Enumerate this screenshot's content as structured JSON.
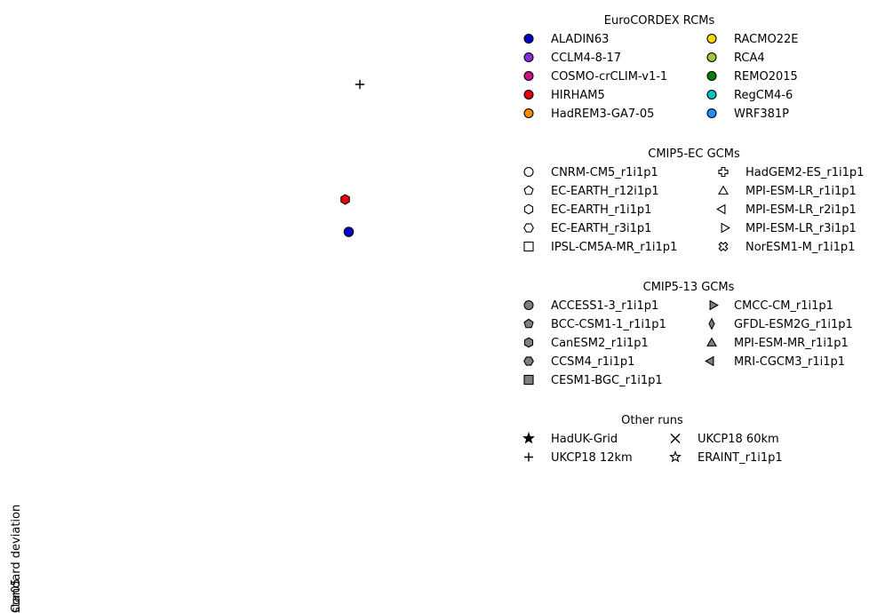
{
  "chart_data": {
    "type": "scatter",
    "title": "",
    "xlabel": "",
    "ylabel": "standard deviation",
    "ylabel_overlap": "Cor05",
    "grid": false,
    "points": [
      {
        "series": "UKCP18 12km",
        "marker": "plus",
        "color": "#000000"
      },
      {
        "series": "HIRHAM5",
        "marker": "hexagon",
        "color": "#e8000b"
      },
      {
        "series": "ALADIN63",
        "marker": "circle",
        "color": "#0000c8"
      }
    ],
    "legends": [
      {
        "title": "EuroCORDEX RCMs",
        "columns": 2,
        "entries": [
          {
            "label": "ALADIN63",
            "marker": "circle",
            "color": "#0000c8"
          },
          {
            "label": "CCLM4-8-17",
            "marker": "circle",
            "color": "#8a2be2"
          },
          {
            "label": "COSMO-crCLIM-v1-1",
            "marker": "circle",
            "color": "#c71585"
          },
          {
            "label": "HIRHAM5",
            "marker": "circle",
            "color": "#e8000b"
          },
          {
            "label": "HadREM3-GA7-05",
            "marker": "circle",
            "color": "#ff8c00"
          },
          {
            "label": "RACMO22E",
            "marker": "circle",
            "color": "#ffd700"
          },
          {
            "label": "RCA4",
            "marker": "circle",
            "color": "#9acd32"
          },
          {
            "label": "REMO2015",
            "marker": "circle",
            "color": "#008000"
          },
          {
            "label": "RegCM4-6",
            "marker": "circle",
            "color": "#00c0c8"
          },
          {
            "label": "WRF381P",
            "marker": "circle",
            "color": "#1e90ff"
          }
        ]
      },
      {
        "title": "CMIP5-EC GCMs",
        "columns": 2,
        "entries": [
          {
            "label": "CNRM-CM5_r1i1p1",
            "marker": "circle",
            "color": "#ffffff"
          },
          {
            "label": "EC-EARTH_r12i1p1",
            "marker": "pentagon",
            "color": "#ffffff"
          },
          {
            "label": "EC-EARTH_r1i1p1",
            "marker": "hexagon",
            "color": "#ffffff"
          },
          {
            "label": "EC-EARTH_r3i1p1",
            "marker": "hexagon2",
            "color": "#ffffff"
          },
          {
            "label": "IPSL-CM5A-MR_r1i1p1",
            "marker": "square",
            "color": "#ffffff"
          },
          {
            "label": "HadGEM2-ES_r1i1p1",
            "marker": "pluscross",
            "color": "#ffffff"
          },
          {
            "label": "MPI-ESM-LR_r1i1p1",
            "marker": "triangle-up",
            "color": "#ffffff"
          },
          {
            "label": "MPI-ESM-LR_r2i1p1",
            "marker": "triangle-left",
            "color": "#ffffff"
          },
          {
            "label": "MPI-ESM-LR_r3i1p1",
            "marker": "triangle-right",
            "color": "#ffffff"
          },
          {
            "label": "NorESM1-M_r1i1p1",
            "marker": "xfilled",
            "color": "#ffffff"
          }
        ]
      },
      {
        "title": "CMIP5-13 GCMs",
        "columns": 2,
        "entries": [
          {
            "label": "ACCESS1-3_r1i1p1",
            "marker": "circle",
            "color": "#808080"
          },
          {
            "label": "BCC-CSM1-1_r1i1p1",
            "marker": "pentagon",
            "color": "#808080"
          },
          {
            "label": "CanESM2_r1i1p1",
            "marker": "hexagon",
            "color": "#808080"
          },
          {
            "label": "CCSM4_r1i1p1",
            "marker": "hexagon2",
            "color": "#808080"
          },
          {
            "label": "CESM1-BGC_r1i1p1",
            "marker": "square",
            "color": "#808080"
          },
          {
            "label": "CMCC-CM_r1i1p1",
            "marker": "triangle-right",
            "color": "#808080"
          },
          {
            "label": "GFDL-ESM2G_r1i1p1",
            "marker": "thin-diamond",
            "color": "#808080"
          },
          {
            "label": "MPI-ESM-MR_r1i1p1",
            "marker": "triangle-up",
            "color": "#808080"
          },
          {
            "label": "MRI-CGCM3_r1i1p1",
            "marker": "triangle-left",
            "color": "#808080"
          }
        ]
      },
      {
        "title": "Other runs",
        "columns": 2,
        "entries": [
          {
            "label": "HadUK-Grid",
            "marker": "star",
            "color": "#000000"
          },
          {
            "label": "UKCP18 12km",
            "marker": "plus",
            "color": "#000000"
          },
          {
            "label": "UKCP18 60km",
            "marker": "x",
            "color": "#000000"
          },
          {
            "label": "ERAINT_r1i1p1",
            "marker": "star",
            "color": "#ffffff"
          }
        ]
      }
    ]
  }
}
